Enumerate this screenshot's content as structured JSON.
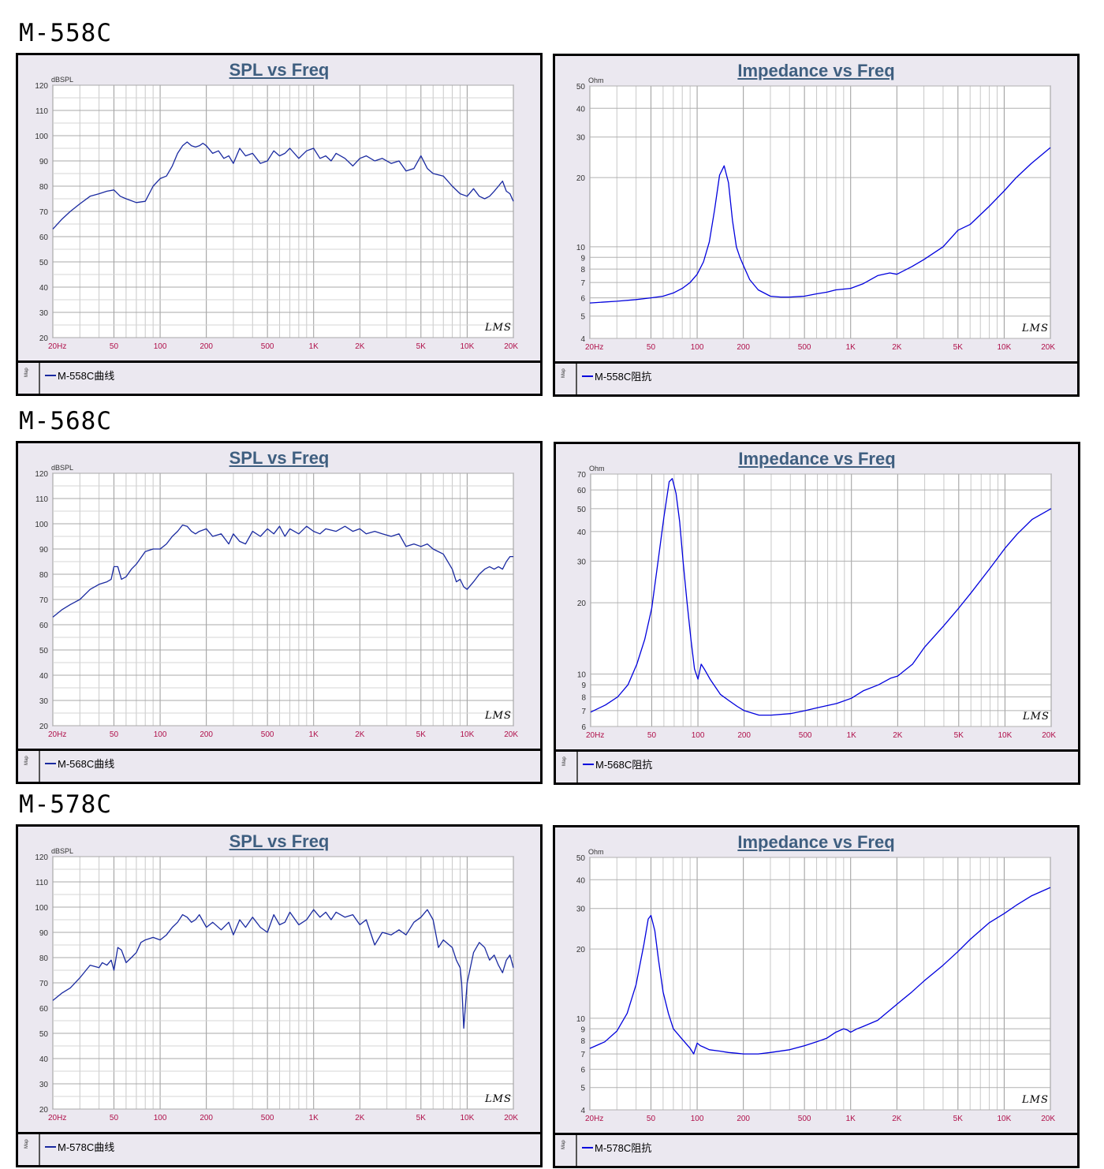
{
  "models": [
    {
      "label": "M-558C"
    },
    {
      "label": "M-568C"
    },
    {
      "label": "M-578C"
    }
  ],
  "chart_data": [
    {
      "type": "line",
      "title": "SPL vs Freq",
      "ylabel": "dBSPL",
      "xscale": "log",
      "xlim": [
        20,
        20000
      ],
      "ylim": [
        20,
        120
      ],
      "xticks": [
        20,
        50,
        100,
        200,
        500,
        1000,
        2000,
        5000,
        10000,
        20000
      ],
      "xtick_labels": [
        "20Hz",
        "50",
        "100",
        "200",
        "500",
        "1K",
        "2K",
        "5K",
        "10K",
        "20K"
      ],
      "yticks": [
        20,
        30,
        40,
        50,
        60,
        70,
        80,
        90,
        100,
        110,
        120
      ],
      "grid": true,
      "legend_position": "bottom",
      "series": [
        {
          "name": "M-558C曲线",
          "color": "#1a2aa0",
          "x": [
            20,
            23,
            26,
            30,
            35,
            40,
            45,
            50,
            55,
            60,
            70,
            80,
            90,
            100,
            110,
            120,
            130,
            140,
            150,
            160,
            170,
            180,
            190,
            200,
            220,
            240,
            260,
            280,
            300,
            330,
            360,
            400,
            450,
            500,
            550,
            600,
            650,
            700,
            800,
            900,
            1000,
            1100,
            1200,
            1300,
            1400,
            1600,
            1800,
            2000,
            2200,
            2500,
            2800,
            3200,
            3600,
            4000,
            4500,
            5000,
            5500,
            6000,
            7000,
            8000,
            9000,
            10000,
            11000,
            12000,
            13000,
            14000,
            15000,
            16000,
            17000,
            18000,
            19000,
            20000
          ],
          "values": [
            63,
            67,
            70,
            73,
            76,
            77,
            78,
            78.5,
            76,
            75,
            73.5,
            74,
            80,
            83,
            84,
            88,
            93,
            96,
            97.5,
            96,
            95.5,
            96,
            97,
            96,
            93,
            94,
            91,
            92,
            89,
            95,
            92,
            93,
            89,
            90,
            94,
            92,
            93,
            95,
            91,
            94,
            95,
            91,
            92,
            90,
            93,
            91,
            88,
            91,
            92,
            90,
            91,
            89,
            90,
            86,
            87,
            92,
            87,
            85,
            84,
            80,
            77,
            76,
            79,
            76,
            75,
            76,
            78,
            80,
            82,
            78,
            77,
            74
          ]
        }
      ]
    },
    {
      "type": "line",
      "title": "Impedance vs Freq",
      "ylabel": "Ohm",
      "xscale": "log",
      "yscale": "log",
      "xlim": [
        20,
        20000
      ],
      "ylim": [
        4,
        50
      ],
      "xticks": [
        20,
        50,
        100,
        200,
        500,
        1000,
        2000,
        5000,
        10000,
        20000
      ],
      "xtick_labels": [
        "20Hz",
        "50",
        "100",
        "200",
        "500",
        "1K",
        "2K",
        "5K",
        "10K",
        "20K"
      ],
      "yticks": [
        4,
        5,
        6,
        7,
        8,
        9,
        10,
        20,
        30,
        40,
        50
      ],
      "grid": true,
      "legend_position": "bottom",
      "series": [
        {
          "name": "M-558C阻抗",
          "color": "#0000dd",
          "x": [
            20,
            30,
            40,
            50,
            60,
            70,
            80,
            90,
            100,
            110,
            120,
            130,
            140,
            150,
            160,
            170,
            180,
            190,
            200,
            220,
            250,
            300,
            350,
            400,
            500,
            600,
            700,
            800,
            1000,
            1200,
            1500,
            1800,
            2000,
            2500,
            3000,
            4000,
            5000,
            6000,
            8000,
            10000,
            12000,
            15000,
            20000
          ],
          "values": [
            5.7,
            5.8,
            5.9,
            6.0,
            6.1,
            6.3,
            6.6,
            7.0,
            7.6,
            8.6,
            10.5,
            14.5,
            20.5,
            22.5,
            19,
            13,
            10,
            9,
            8.3,
            7.2,
            6.5,
            6.1,
            6.05,
            6.05,
            6.1,
            6.25,
            6.35,
            6.5,
            6.6,
            6.9,
            7.5,
            7.7,
            7.6,
            8.2,
            8.8,
            10.0,
            11.8,
            12.5,
            15,
            17.5,
            20,
            23,
            27
          ]
        }
      ]
    },
    {
      "type": "line",
      "title": "SPL vs Freq",
      "ylabel": "dBSPL",
      "xscale": "log",
      "xlim": [
        20,
        20000
      ],
      "ylim": [
        20,
        120
      ],
      "xticks": [
        20,
        50,
        100,
        200,
        500,
        1000,
        2000,
        5000,
        10000,
        20000
      ],
      "xtick_labels": [
        "20Hz",
        "50",
        "100",
        "200",
        "500",
        "1K",
        "2K",
        "5K",
        "10K",
        "20K"
      ],
      "yticks": [
        20,
        30,
        40,
        50,
        60,
        70,
        80,
        90,
        100,
        110,
        120
      ],
      "grid": true,
      "legend_position": "bottom",
      "series": [
        {
          "name": "M-568C曲线",
          "color": "#1a2aa0",
          "x": [
            20,
            23,
            26,
            30,
            35,
            40,
            45,
            48,
            50,
            53,
            56,
            60,
            65,
            70,
            80,
            90,
            100,
            110,
            120,
            130,
            140,
            150,
            160,
            170,
            180,
            200,
            220,
            250,
            280,
            300,
            330,
            360,
            400,
            450,
            500,
            550,
            600,
            650,
            700,
            800,
            900,
            1000,
            1100,
            1200,
            1400,
            1600,
            1800,
            2000,
            2200,
            2500,
            2800,
            3200,
            3600,
            4000,
            4500,
            5000,
            5500,
            6000,
            7000,
            8000,
            8500,
            9000,
            9500,
            10000,
            11000,
            12000,
            13000,
            14000,
            15000,
            16000,
            17000,
            18000,
            19000,
            20000
          ],
          "values": [
            63,
            66,
            68,
            70,
            74,
            76,
            77,
            78,
            83,
            83,
            78,
            79,
            82,
            84,
            89,
            90,
            90,
            92,
            95,
            97,
            99.5,
            99,
            97,
            96,
            97,
            98,
            95,
            96,
            92,
            96,
            93,
            92,
            97,
            95,
            98,
            96,
            99,
            95,
            98,
            96,
            99,
            97,
            96,
            98,
            97,
            99,
            97,
            98,
            96,
            97,
            96,
            95,
            96,
            91,
            92,
            91,
            92,
            90,
            88,
            82,
            77,
            78,
            75,
            74,
            77,
            80,
            82,
            83,
            82,
            83,
            82,
            85,
            87,
            87
          ]
        }
      ]
    },
    {
      "type": "line",
      "title": "Impedance vs Freq",
      "ylabel": "Ohm",
      "xscale": "log",
      "yscale": "log",
      "xlim": [
        20,
        20000
      ],
      "ylim": [
        6,
        70
      ],
      "xticks": [
        20,
        50,
        100,
        200,
        500,
        1000,
        2000,
        5000,
        10000,
        20000
      ],
      "xtick_labels": [
        "20Hz",
        "50",
        "100",
        "200",
        "500",
        "1K",
        "2K",
        "5K",
        "10K",
        "20K"
      ],
      "yticks": [
        6,
        7,
        8,
        9,
        10,
        20,
        30,
        40,
        50,
        60,
        70
      ],
      "grid": true,
      "legend_position": "bottom",
      "series": [
        {
          "name": "M-568C阻抗",
          "color": "#0000dd",
          "x": [
            20,
            25,
            30,
            35,
            40,
            45,
            50,
            55,
            60,
            65,
            68,
            72,
            76,
            80,
            85,
            90,
            95,
            100,
            105,
            110,
            120,
            140,
            160,
            180,
            200,
            250,
            300,
            400,
            500,
            600,
            800,
            1000,
            1200,
            1500,
            1800,
            2000,
            2500,
            3000,
            4000,
            5000,
            6000,
            8000,
            10000,
            12000,
            15000,
            20000
          ],
          "values": [
            6.9,
            7.4,
            8.0,
            9.0,
            11,
            14,
            19,
            30,
            46,
            65,
            67,
            58,
            44,
            30,
            20,
            14,
            10.5,
            9.5,
            11,
            10.5,
            9.5,
            8.2,
            7.7,
            7.3,
            7.0,
            6.7,
            6.7,
            6.8,
            7.0,
            7.2,
            7.5,
            7.9,
            8.5,
            9.0,
            9.6,
            9.8,
            11,
            13,
            16,
            19,
            22,
            28,
            34,
            39,
            45,
            50
          ]
        }
      ]
    },
    {
      "type": "line",
      "title": "SPL vs Freq",
      "ylabel": "dBSPL",
      "xscale": "log",
      "xlim": [
        20,
        20000
      ],
      "ylim": [
        20,
        120
      ],
      "xticks": [
        20,
        50,
        100,
        200,
        500,
        1000,
        2000,
        5000,
        10000,
        20000
      ],
      "xtick_labels": [
        "20Hz",
        "50",
        "100",
        "200",
        "500",
        "1K",
        "2K",
        "5K",
        "10K",
        "20K"
      ],
      "yticks": [
        20,
        30,
        40,
        50,
        60,
        70,
        80,
        90,
        100,
        110,
        120
      ],
      "grid": true,
      "legend_position": "bottom",
      "series": [
        {
          "name": "M-578C曲线",
          "color": "#1a2aa0",
          "x": [
            20,
            23,
            26,
            30,
            35,
            40,
            42,
            45,
            48,
            50,
            53,
            56,
            60,
            65,
            70,
            75,
            80,
            90,
            100,
            110,
            120,
            130,
            140,
            150,
            160,
            170,
            180,
            200,
            220,
            250,
            280,
            300,
            330,
            360,
            400,
            450,
            500,
            550,
            600,
            650,
            700,
            800,
            900,
            1000,
            1100,
            1200,
            1300,
            1400,
            1600,
            1800,
            2000,
            2200,
            2500,
            2800,
            3200,
            3600,
            4000,
            4500,
            5000,
            5500,
            6000,
            6500,
            7000,
            8000,
            8500,
            9000,
            9200,
            9500,
            10000,
            11000,
            12000,
            13000,
            14000,
            15000,
            16000,
            17000,
            18000,
            19000,
            20000
          ],
          "values": [
            63,
            66,
            68,
            72,
            77,
            76,
            78,
            77,
            79,
            75,
            84,
            83,
            78,
            80,
            82,
            86,
            87,
            88,
            87,
            89,
            92,
            94,
            97,
            96,
            94,
            95,
            97,
            92,
            94,
            91,
            94,
            89,
            95,
            92,
            96,
            92,
            90,
            97,
            93,
            94,
            98,
            93,
            95,
            99,
            96,
            98,
            95,
            98,
            96,
            97,
            93,
            95,
            85,
            90,
            89,
            91,
            89,
            94,
            96,
            99,
            95,
            84,
            87,
            84,
            79,
            76,
            70,
            52,
            70,
            82,
            86,
            84,
            79,
            81,
            77,
            74,
            79,
            81,
            76
          ]
        }
      ]
    },
    {
      "type": "line",
      "title": "Impedance vs Freq",
      "ylabel": "Ohm",
      "xscale": "log",
      "yscale": "log",
      "xlim": [
        20,
        20000
      ],
      "ylim": [
        4,
        50
      ],
      "xticks": [
        20,
        50,
        100,
        200,
        500,
        1000,
        2000,
        5000,
        10000,
        20000
      ],
      "xtick_labels": [
        "20Hz",
        "50",
        "100",
        "200",
        "500",
        "1K",
        "2K",
        "5K",
        "10K",
        "20K"
      ],
      "yticks": [
        4,
        5,
        6,
        7,
        8,
        9,
        10,
        20,
        30,
        40,
        50
      ],
      "grid": true,
      "legend_position": "bottom",
      "series": [
        {
          "name": "M-578C阻抗",
          "color": "#0000dd",
          "x": [
            20,
            25,
            30,
            35,
            40,
            45,
            48,
            50,
            53,
            56,
            60,
            65,
            70,
            80,
            90,
            95,
            100,
            105,
            110,
            120,
            140,
            160,
            180,
            200,
            250,
            300,
            400,
            500,
            600,
            700,
            800,
            900,
            950,
            1000,
            1100,
            1200,
            1500,
            2000,
            2500,
            3000,
            4000,
            5000,
            6000,
            8000,
            10000,
            12000,
            15000,
            20000
          ],
          "values": [
            7.4,
            7.9,
            8.8,
            10.5,
            14,
            21,
            27,
            28,
            24,
            18,
            13,
            10.5,
            9.0,
            8.1,
            7.4,
            7.0,
            7.8,
            7.6,
            7.5,
            7.3,
            7.2,
            7.1,
            7.05,
            7.0,
            7.0,
            7.1,
            7.3,
            7.6,
            7.9,
            8.2,
            8.7,
            9.0,
            8.9,
            8.7,
            9.0,
            9.2,
            9.8,
            11.5,
            13,
            14.5,
            17,
            19.5,
            22,
            26,
            28.5,
            31,
            34,
            37
          ]
        }
      ]
    }
  ],
  "panels": [
    {
      "legend_side": "Map",
      "watermark": "LMS"
    },
    {
      "legend_side": "Map",
      "watermark": "LMS"
    },
    {
      "legend_side": "Map",
      "watermark": "LMS"
    },
    {
      "legend_side": "Map",
      "watermark": "LMS"
    },
    {
      "legend_side": "Map",
      "watermark": "LMS"
    },
    {
      "legend_side": "Map",
      "watermark": "LMS"
    }
  ]
}
